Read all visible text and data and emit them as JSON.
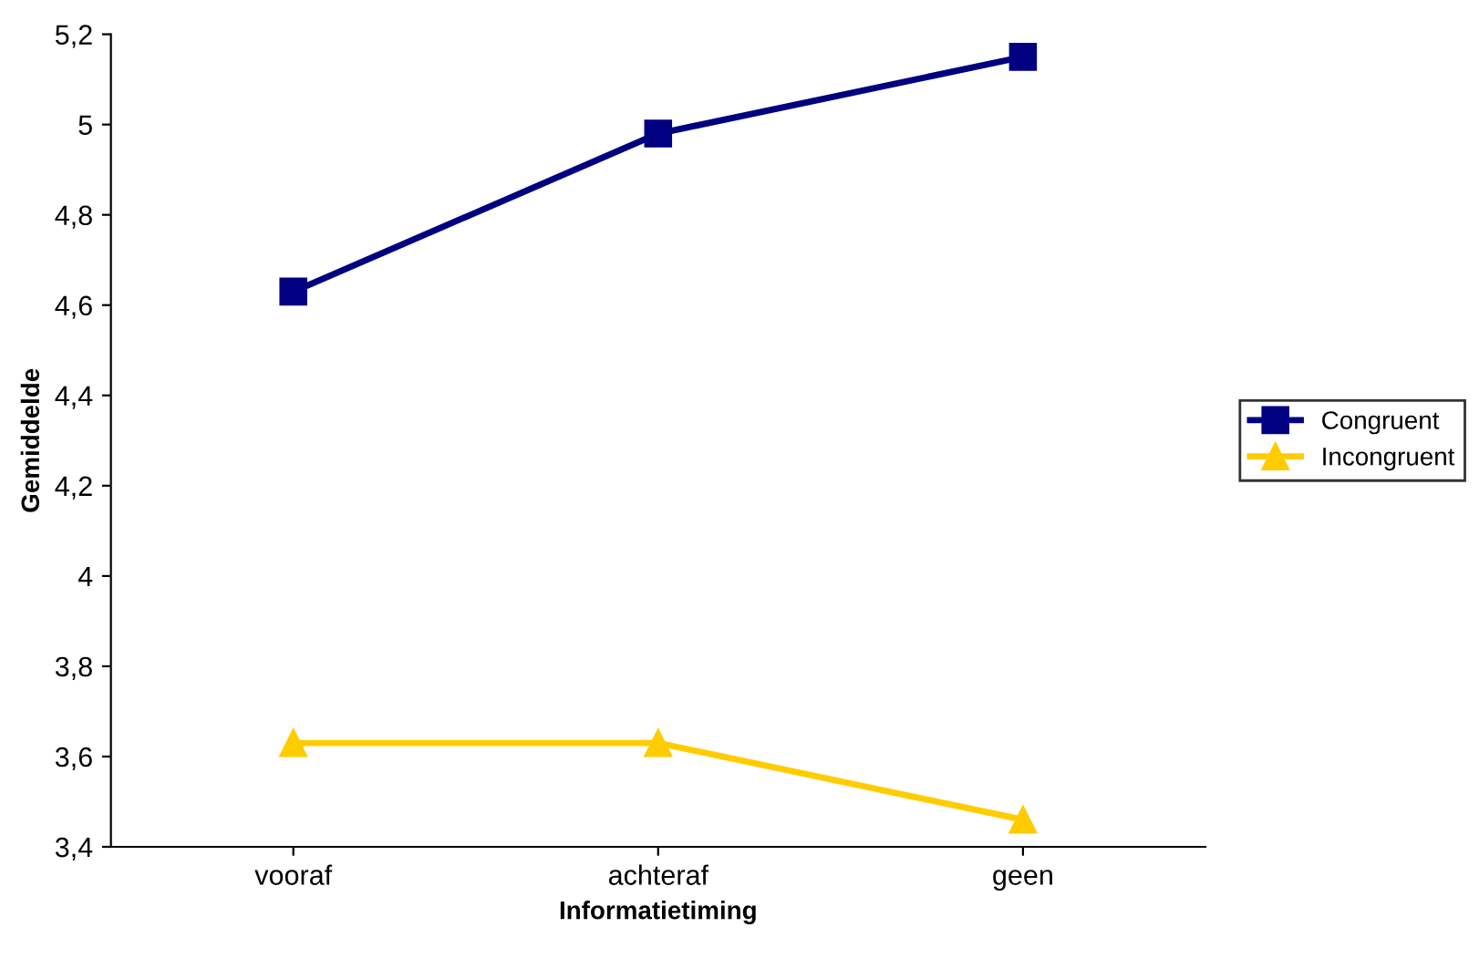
{
  "chart_data": {
    "type": "line",
    "xlabel": "Informatietiming",
    "ylabel": "Gemiddelde",
    "categories": [
      "vooraf",
      "achteraf",
      "geen"
    ],
    "series": [
      {
        "name": "Congruent",
        "color": "#000080",
        "values": [
          4.63,
          4.98,
          5.15
        ],
        "marker": "square"
      },
      {
        "name": "Incongruent",
        "color": "#ffcc00",
        "values": [
          3.63,
          3.63,
          3.46
        ],
        "marker": "triangle"
      }
    ],
    "ylim": [
      3.4,
      5.2
    ],
    "yticks": [
      {
        "value": 3.4,
        "label": "3,4"
      },
      {
        "value": 3.6,
        "label": "3,6"
      },
      {
        "value": 3.8,
        "label": "3,8"
      },
      {
        "value": 4,
        "label": "4"
      },
      {
        "value": 4.2,
        "label": "4,2"
      },
      {
        "value": 4.4,
        "label": "4,4"
      },
      {
        "value": 4.6,
        "label": "4,6"
      },
      {
        "value": 4.8,
        "label": "4,8"
      },
      {
        "value": 5,
        "label": "5"
      },
      {
        "value": 5.2,
        "label": "5,2"
      }
    ],
    "grid": false,
    "legend": "right",
    "line_style": "solid"
  }
}
